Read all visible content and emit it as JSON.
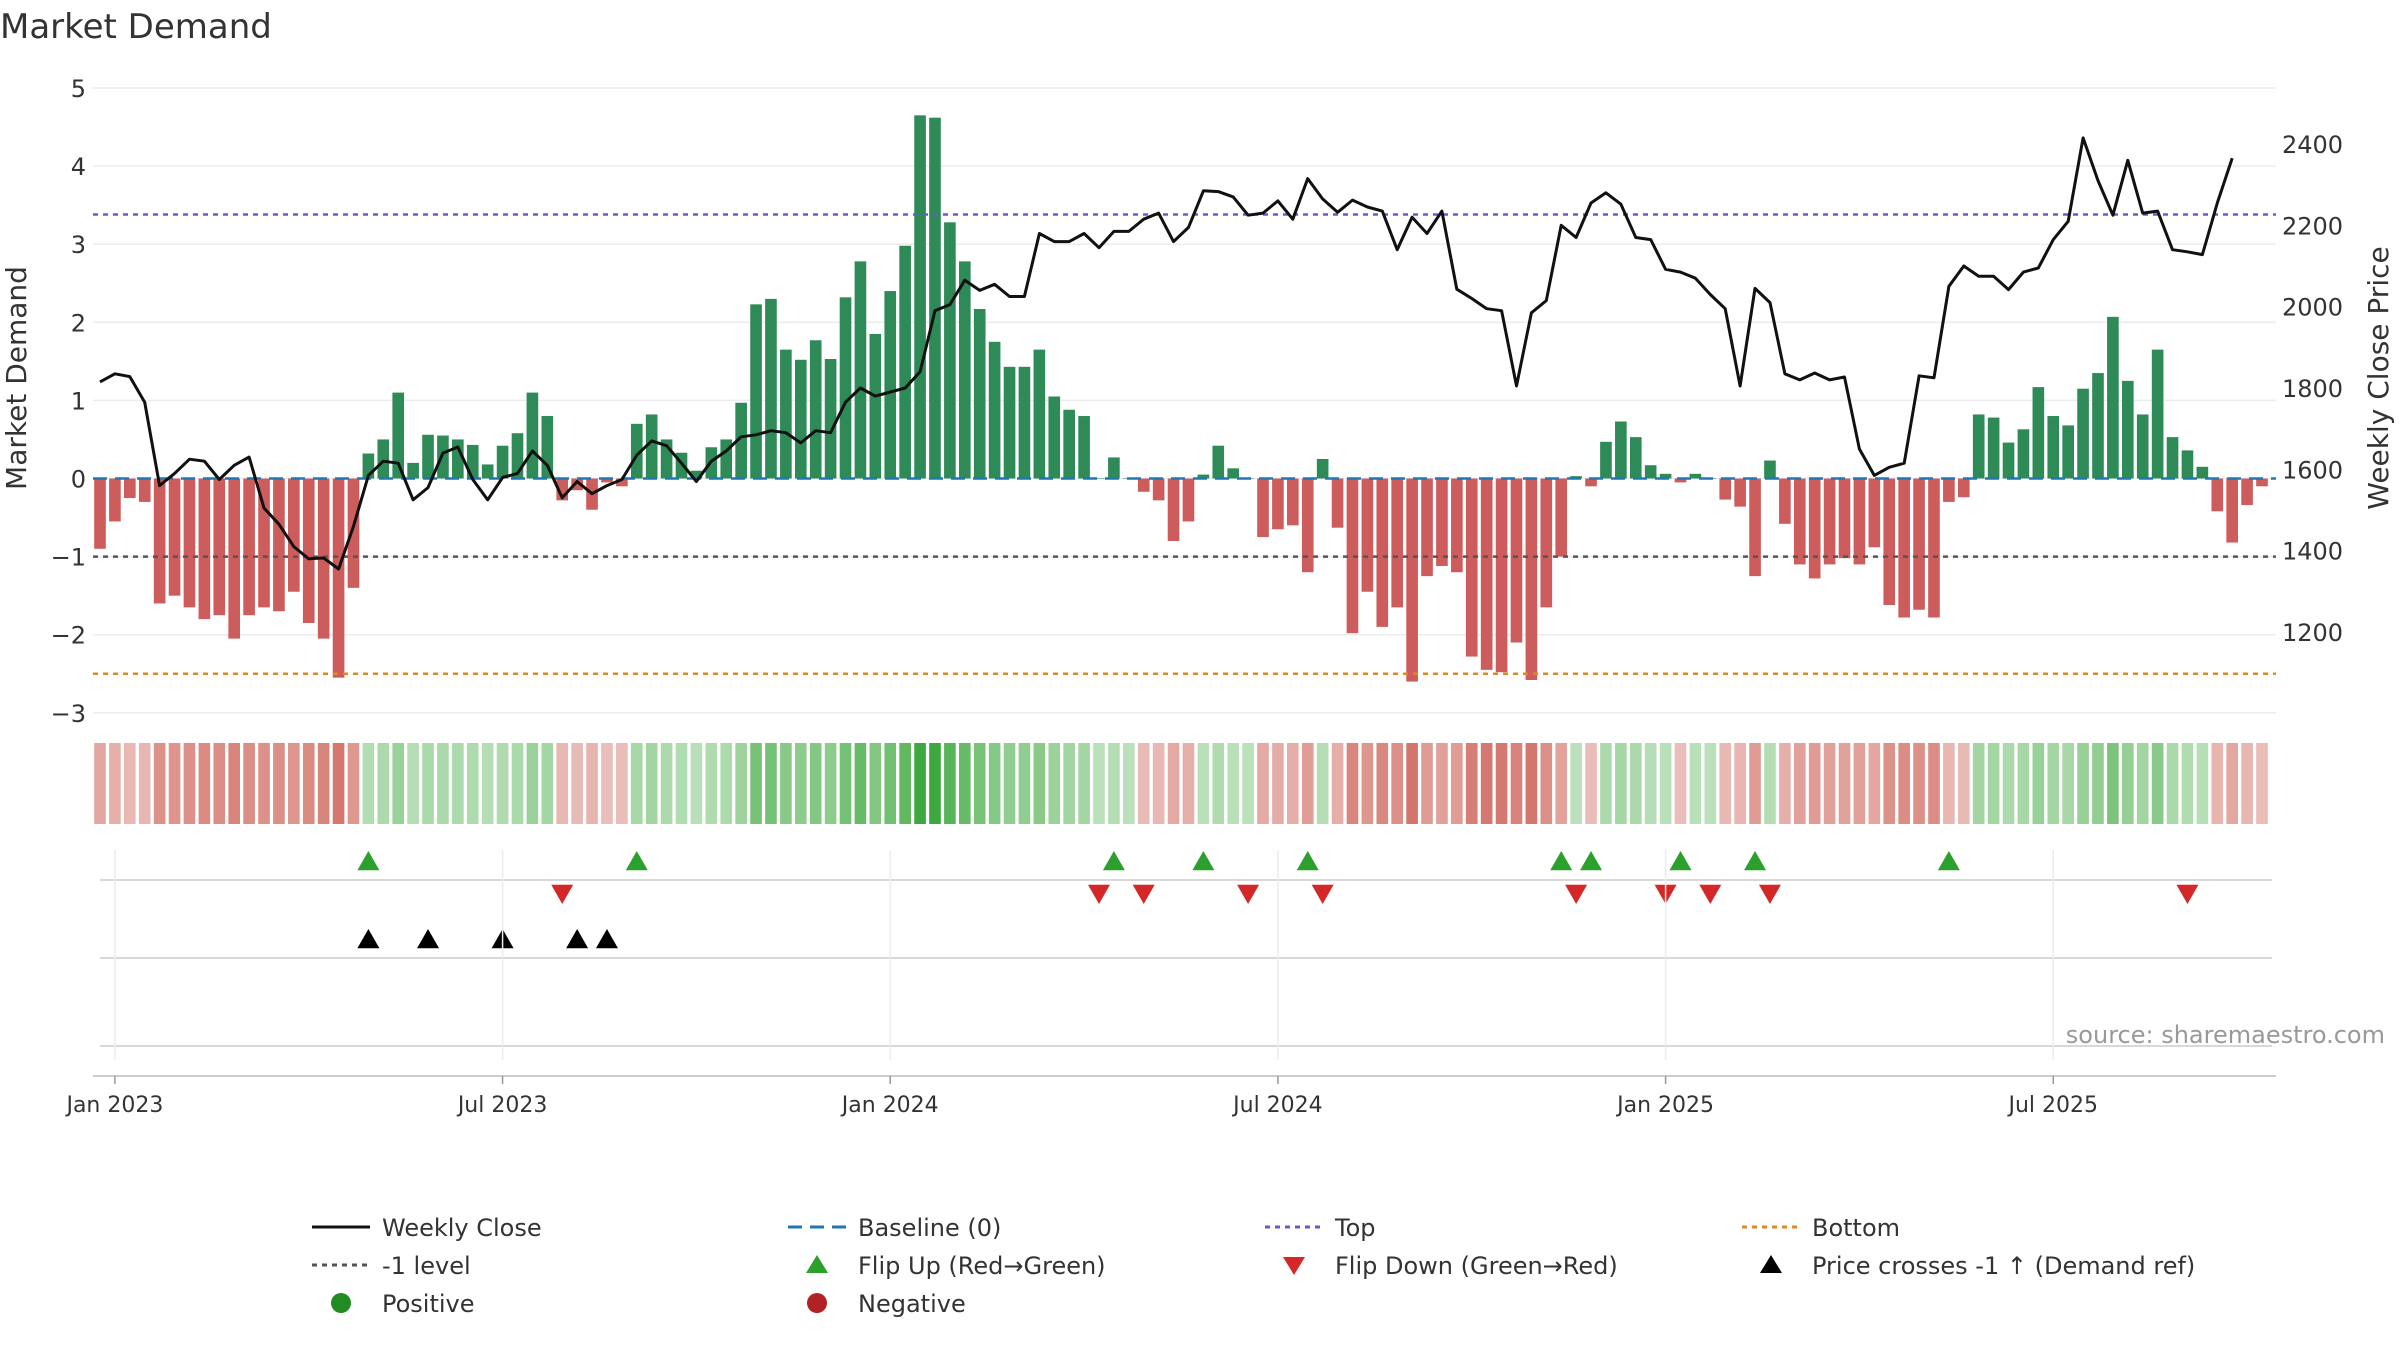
{
  "chart_data": {
    "type": "bar",
    "title": "Market Demand",
    "ylabel_left": "Market Demand",
    "ylabel_right": "Weekly Close Price",
    "ylim_left": [
      -3,
      5
    ],
    "ylim_right": [
      1050,
      2500
    ],
    "yticks_left": [
      "5",
      "4",
      "3",
      "2",
      "1",
      "0",
      "−1",
      "−2",
      "−3"
    ],
    "yticks_right": [
      "2400",
      "2200",
      "2000",
      "1800",
      "1600",
      "1400",
      "1200"
    ],
    "xticks": [
      "Jan 2023",
      "Jul 2023",
      "Jan 2024",
      "Jul 2024",
      "Jan 2025",
      "Jul 2025"
    ],
    "source": "source: sharemaestro.com",
    "reference_lines": {
      "top": 3.38,
      "bottom": -2.5,
      "minus_one": -1,
      "baseline": 0
    },
    "colors": {
      "positive": "#2e8b57",
      "negative": "#cd5c5c",
      "close": "#111111",
      "top": "#6a5acd",
      "bottom": "#e08a1e",
      "level": "#555555",
      "baseline": "#1f77b4",
      "flip_up": "#2ca02c",
      "flip_down": "#d62728",
      "cross": "#000000"
    },
    "demand": [
      -0.9,
      -0.55,
      -0.25,
      -0.3,
      -1.6,
      -1.5,
      -1.65,
      -1.8,
      -1.75,
      -2.05,
      -1.75,
      -1.65,
      -1.7,
      -1.45,
      -1.85,
      -2.05,
      -2.55,
      -1.4,
      0.32,
      0.5,
      1.1,
      0.2,
      0.56,
      0.55,
      0.5,
      0.43,
      0.18,
      0.42,
      0.58,
      1.1,
      0.8,
      -0.28,
      -0.15,
      -0.4,
      -0.05,
      -0.1,
      0.7,
      0.82,
      0.5,
      0.33,
      0.1,
      0.4,
      0.5,
      0.97,
      2.23,
      2.3,
      1.65,
      1.52,
      1.77,
      1.53,
      2.32,
      2.78,
      1.85,
      2.4,
      2.98,
      4.65,
      4.62,
      3.28,
      2.78,
      2.17,
      1.75,
      1.43,
      1.43,
      1.65,
      1.05,
      0.88,
      0.8,
      0.0,
      0.27,
      0.0,
      -0.17,
      -0.28,
      -0.8,
      -0.55,
      0.05,
      0.42,
      0.13,
      0.0,
      -0.75,
      -0.65,
      -0.6,
      -1.2,
      0.25,
      -0.63,
      -1.98,
      -1.45,
      -1.9,
      -1.65,
      -2.6,
      -1.25,
      -1.12,
      -1.2,
      -2.28,
      -2.45,
      -2.48,
      -2.1,
      -2.58,
      -1.65,
      -1.0,
      0.03,
      -0.1,
      0.47,
      0.73,
      0.53,
      0.17,
      0.06,
      -0.05,
      0.06,
      0.0,
      -0.27,
      -0.36,
      -1.25,
      0.23,
      -0.58,
      -1.1,
      -1.28,
      -1.1,
      -1.02,
      -1.1,
      -0.88,
      -1.62,
      -1.78,
      -1.68,
      -1.78,
      -0.3,
      -0.24,
      0.82,
      0.78,
      0.46,
      0.63,
      1.17,
      0.8,
      0.68,
      1.15,
      1.35,
      2.07,
      1.25,
      0.82,
      1.65,
      0.53,
      0.36,
      0.15,
      -0.42,
      -0.82,
      -0.34,
      -0.1
    ],
    "weekly_close": [
      1815,
      1835,
      1828,
      1765,
      1560,
      1590,
      1625,
      1620,
      1575,
      1610,
      1630,
      1505,
      1465,
      1410,
      1380,
      1382,
      1355,
      1460,
      1585,
      1620,
      1615,
      1525,
      1555,
      1640,
      1655,
      1575,
      1525,
      1580,
      1590,
      1645,
      1610,
      1530,
      1570,
      1540,
      1560,
      1575,
      1635,
      1670,
      1658,
      1615,
      1570,
      1620,
      1645,
      1680,
      1685,
      1695,
      1690,
      1665,
      1695,
      1690,
      1765,
      1800,
      1780,
      1790,
      1800,
      1840,
      1990,
      2005,
      2065,
      2040,
      2055,
      2025,
      2025,
      2180,
      2160,
      2160,
      2180,
      2145,
      2185,
      2185,
      2215,
      2230,
      2160,
      2195,
      2285,
      2283,
      2270,
      2225,
      2230,
      2260,
      2215,
      2315,
      2265,
      2232,
      2262,
      2245,
      2235,
      2140,
      2220,
      2180,
      2235,
      2043,
      2020,
      1995,
      1990,
      1805,
      1985,
      2015,
      2200,
      2170,
      2255,
      2280,
      2252,
      2170,
      2165,
      2092,
      2085,
      2070,
      2030,
      1995,
      1805,
      2045,
      2010,
      1835,
      1820,
      1837,
      1820,
      1827,
      1650,
      1585,
      1605,
      1615,
      1830,
      1825,
      2050,
      2100,
      2075,
      2075,
      2042,
      2085,
      2095,
      2165,
      2210,
      2415,
      2310,
      2225,
      2360,
      2230,
      2235,
      2140,
      2135,
      2128,
      2255,
      2365
    ]
  },
  "heatmap": {
    "label": "demand heat strip"
  },
  "flip_up_index": [
    18,
    36,
    68,
    74,
    81,
    98,
    100,
    106,
    111,
    124
  ],
  "flip_down_index": [
    31,
    67,
    70,
    77,
    82,
    99,
    105,
    108,
    112,
    140
  ],
  "cross_up_index": [
    18,
    22,
    27,
    32,
    34
  ],
  "legend": {
    "weekly_close": "Weekly Close",
    "baseline": "Baseline (0)",
    "top": "Top",
    "bottom": "Bottom",
    "level": "-1 level",
    "flip_up": "Flip Up (Red→Green)",
    "flip_down": "Flip Down (Green→Red)",
    "cross": "Price crosses -1 ↑ (Demand ref)",
    "positive": "Positive",
    "negative": "Negative"
  }
}
